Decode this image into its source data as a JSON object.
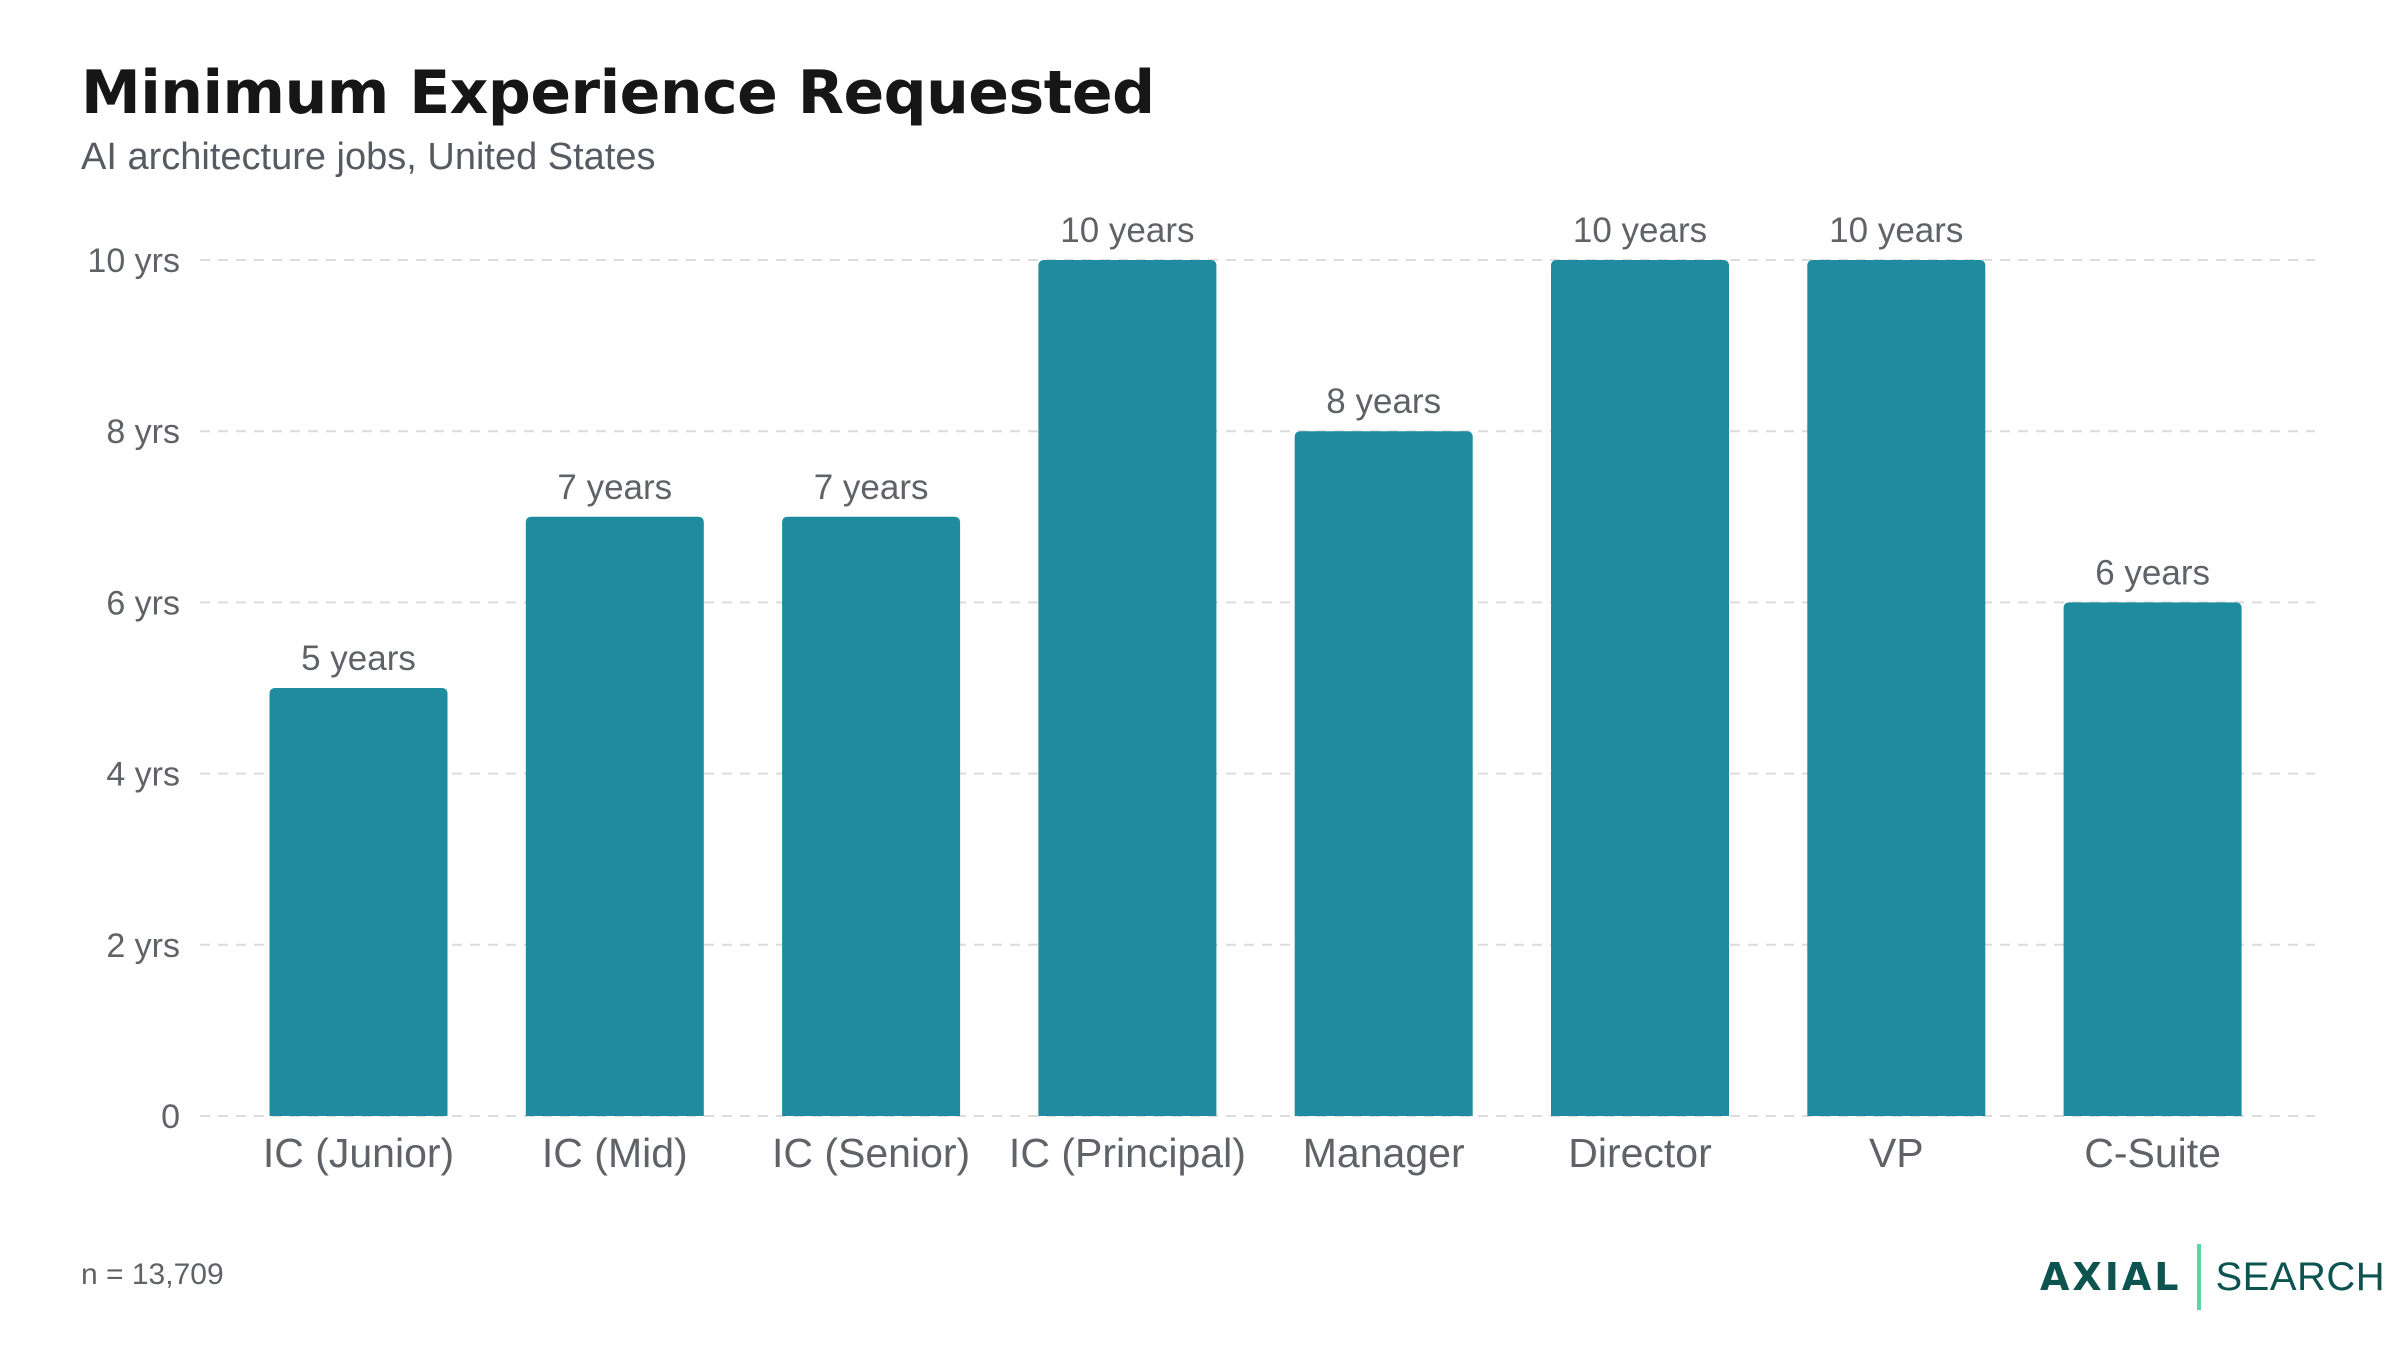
{
  "header": {
    "title": "Minimum Experience Requested",
    "subtitle": "AI architecture jobs, United States"
  },
  "chart_data": {
    "type": "bar",
    "categories": [
      "IC (Junior)",
      "IC (Mid)",
      "IC (Senior)",
      "IC (Principal)",
      "Manager",
      "Director",
      "VP",
      "C-Suite"
    ],
    "values": [
      5,
      7,
      7,
      10,
      8,
      10,
      10,
      6
    ],
    "data_labels": [
      "5 years",
      "7 years",
      "7 years",
      "10 years",
      "8 years",
      "10 years",
      "10 years",
      "6 years"
    ],
    "y_ticks": [
      0,
      2,
      4,
      6,
      8,
      10
    ],
    "y_tick_labels": [
      "0",
      "2 yrs",
      "4 yrs",
      "6 yrs",
      "8 yrs",
      "10 yrs"
    ],
    "ylim": [
      0,
      10
    ],
    "grid": true,
    "bar_color": "#1e8c9e",
    "grid_color": "#dcdcdc",
    "label_color": "#5f6368"
  },
  "footer": {
    "note": "n = 13,709",
    "logo_left": "AXIAL",
    "logo_right": "SEARCH",
    "logo_color": "#0d5450",
    "logo_accent": "#59d6a3"
  }
}
